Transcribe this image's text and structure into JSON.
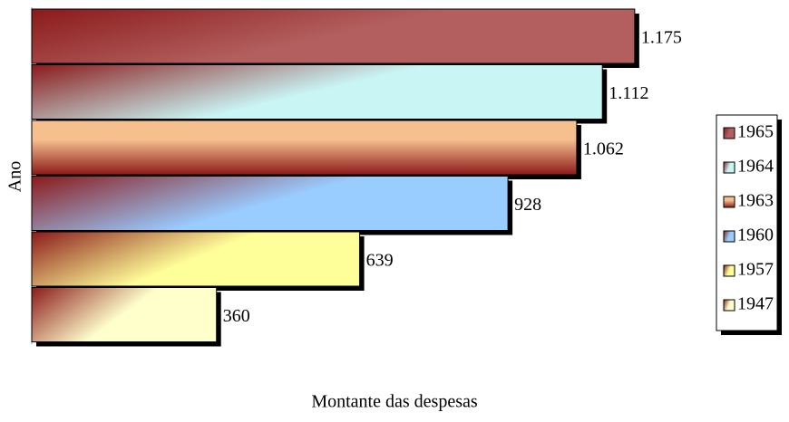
{
  "chart_data": {
    "type": "hbar",
    "x_label": "Montante das despesas",
    "y_label": "Ano",
    "xlim": [
      0,
      1200
    ],
    "series": [
      {
        "name": "1965",
        "color": "#b35f5f",
        "values": [
          1175
        ],
        "value_labels": [
          "1.175"
        ]
      },
      {
        "name": "1964",
        "color": "#c9f5f5",
        "values": [
          1112
        ],
        "value_labels": [
          "1.112"
        ]
      },
      {
        "name": "1963",
        "color": "#f5c08e",
        "values": [
          1062
        ],
        "value_labels": [
          "1.062"
        ]
      },
      {
        "name": "1960",
        "color": "#99ccff",
        "values": [
          928
        ],
        "value_labels": [
          "928"
        ]
      },
      {
        "name": "1957",
        "color": "#ffff99",
        "values": [
          639
        ],
        "value_labels": [
          "639"
        ]
      },
      {
        "name": "1947",
        "color": "#ffffcc",
        "values": [
          360
        ],
        "value_labels": [
          "360"
        ]
      }
    ],
    "legend": "right"
  }
}
